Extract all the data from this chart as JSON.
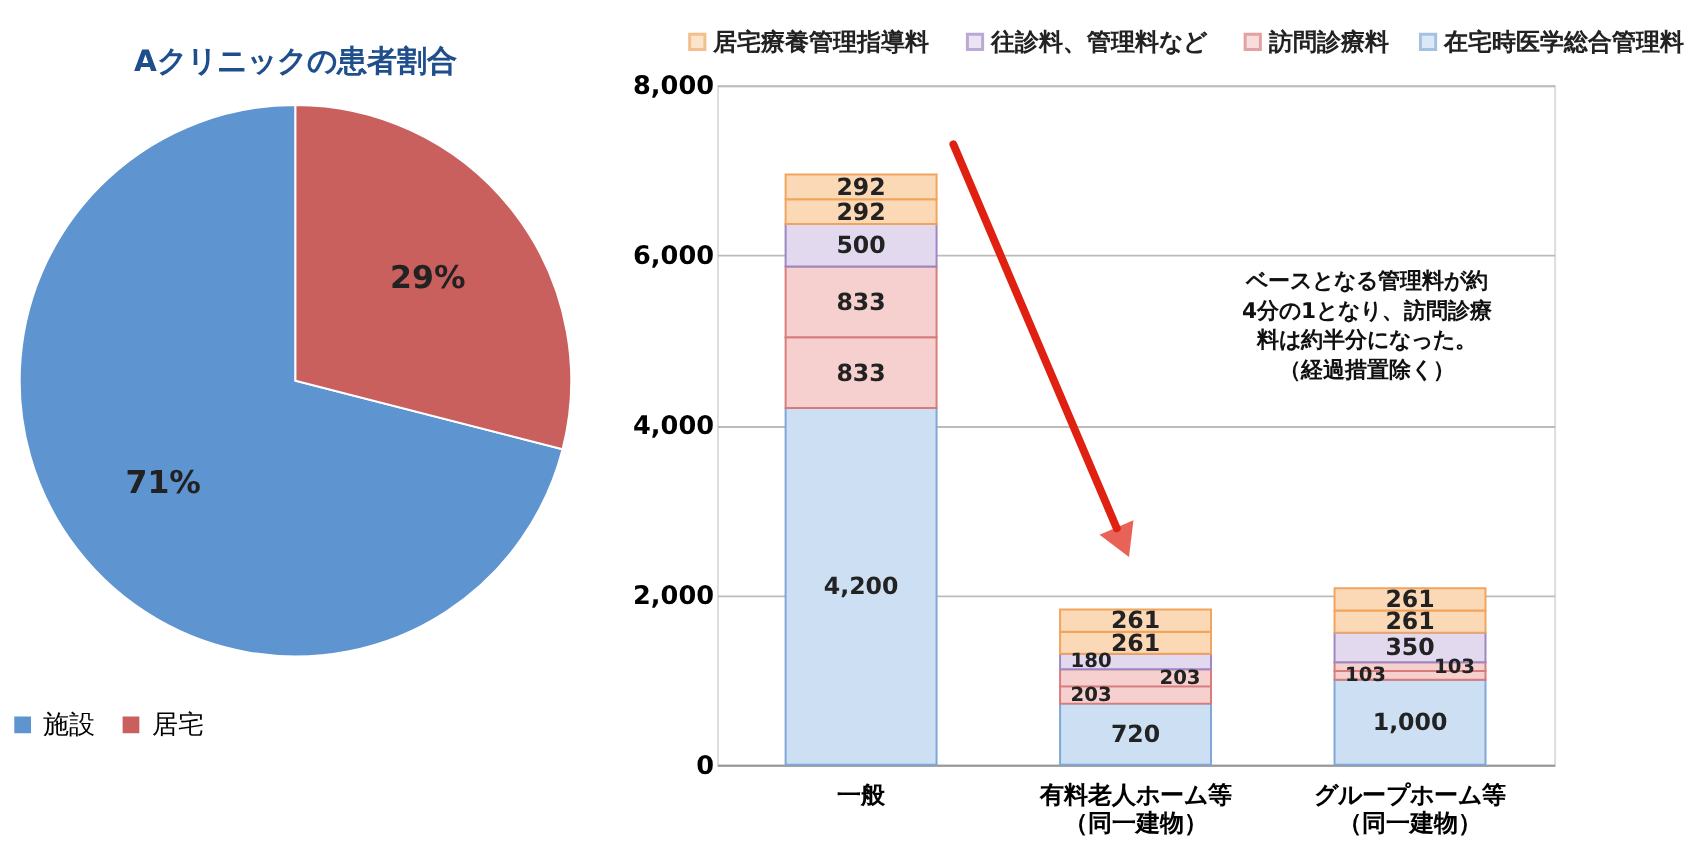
{
  "chart_data": [
    {
      "type": "pie",
      "title": "Aクリニックの患者割合",
      "categories": [
        "施設",
        "居宅"
      ],
      "values": [
        71,
        29
      ],
      "colors": [
        "#5e94d0",
        "#c9605d"
      ],
      "value_labels": [
        "71%",
        "29%"
      ],
      "legend": "bottom"
    },
    {
      "type": "bar",
      "stacked": true,
      "categories": [
        "一般",
        "有料老人ホーム等（同一建物）",
        "グループホーム等（同一建物）"
      ],
      "series": [
        {
          "name": "在宅時医学総合管理料",
          "color": "#cddff3",
          "values": [
            4200,
            720,
            1000
          ],
          "value_labels": [
            "4,200",
            "720",
            "1,000"
          ]
        },
        {
          "name": "訪問診療料",
          "color": "#f6cfcf",
          "values": [
            833,
            203,
            103
          ],
          "value_labels": [
            "833",
            "203",
            "103"
          ]
        },
        {
          "color": "#f6cfcf",
          "values": [
            833,
            203,
            103
          ],
          "value_labels": [
            "833",
            "203",
            "103"
          ]
        },
        {
          "name": "往診料、管理料など",
          "color": "#e2d9ef",
          "values": [
            500,
            180,
            350
          ],
          "value_labels": [
            "500",
            "180",
            "350"
          ]
        },
        {
          "name": "居宅療養管理指導料",
          "color": "#fcd9b6",
          "values": [
            292,
            261,
            261
          ],
          "value_labels": [
            "292",
            "261",
            "261"
          ]
        },
        {
          "color": "#fcd9b6",
          "values": [
            292,
            261,
            261
          ],
          "value_labels": [
            "292",
            "261",
            "261"
          ]
        }
      ],
      "ylim": [
        0,
        8000
      ],
      "yticks": [
        0,
        {
          "value": 2000,
          "label": "2,000"
        },
        {
          "value": 4000,
          "label": "4,000"
        },
        {
          "value": 6000,
          "label": "6,000"
        },
        {
          "value": 8000,
          "label": "8,000"
        }
      ],
      "grid": "y",
      "legend": "top",
      "annotations": [
        "ベースとなる管理料が約4分の1となり、訪問診療料は約半分になった。（経過措置除く）"
      ]
    }
  ]
}
